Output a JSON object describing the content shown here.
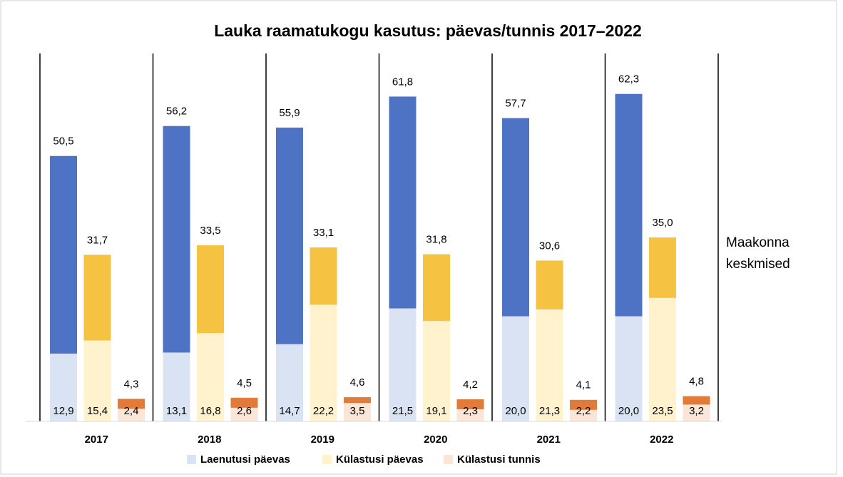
{
  "chart_data": {
    "type": "bar",
    "title": "Lauka raamatukogu kasutus: päevas/tunnis 2017–2022",
    "categories": [
      "2017",
      "2018",
      "2019",
      "2020",
      "2021",
      "2022"
    ],
    "ylim": [
      0,
      70
    ],
    "annotation": "Maakonna keskmised",
    "series": [
      {
        "name": "Laenutusi päevas",
        "color": "#dae3f3",
        "values": [
          12.9,
          13.1,
          14.7,
          21.5,
          20.0,
          20.0
        ],
        "value_labels": [
          "12,9",
          "13,1",
          "14,7",
          "21,5",
          "20,0",
          "20,0"
        ],
        "county_color": "#4e72c4",
        "county_values": [
          50.5,
          56.2,
          55.9,
          61.8,
          57.7,
          62.3
        ],
        "county_value_labels": [
          "50,5",
          "56,2",
          "55,9",
          "61,8",
          "57,7",
          "62,3"
        ]
      },
      {
        "name": "Külastusi päevas",
        "color": "#fff2cc",
        "values": [
          15.4,
          16.8,
          22.2,
          19.1,
          21.3,
          23.5
        ],
        "value_labels": [
          "15,4",
          "16,8",
          "22,2",
          "19,1",
          "21,3",
          "23,5"
        ],
        "county_color": "#f5c242",
        "county_values": [
          31.7,
          33.5,
          33.1,
          31.8,
          30.6,
          35.0
        ],
        "county_value_labels": [
          "31,7",
          "33,5",
          "33,1",
          "31,8",
          "30,6",
          "35,0"
        ]
      },
      {
        "name": "Külastusi tunnis",
        "color": "#fbe5d6",
        "values": [
          2.4,
          2.6,
          3.5,
          2.3,
          2.2,
          3.2
        ],
        "value_labels": [
          "2,4",
          "2,6",
          "3,5",
          "2,3",
          "2,2",
          "3,2"
        ],
        "county_color": "#e07b39",
        "county_values": [
          4.3,
          4.5,
          4.6,
          4.2,
          4.1,
          4.8
        ],
        "county_value_labels": [
          "4,3",
          "4,5",
          "4,6",
          "4,2",
          "4,1",
          "4,8"
        ]
      }
    ]
  }
}
